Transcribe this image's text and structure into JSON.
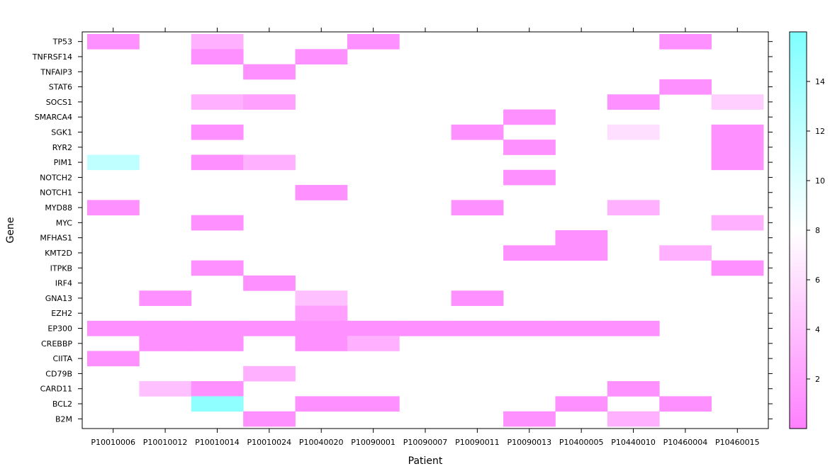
{
  "chart_data": {
    "type": "heatmap",
    "xlabel": "Patient",
    "ylabel": "Gene",
    "x_categories": [
      "P10010006",
      "P10010012",
      "P10010014",
      "P10010024",
      "P10040020",
      "P10090001",
      "P10090007",
      "P10090011",
      "P10090013",
      "P10400005",
      "P10440010",
      "P10460004",
      "P10460015"
    ],
    "y_categories": [
      "B2M",
      "BCL2",
      "CARD11",
      "CD79B",
      "CIITA",
      "CREBBP",
      "EP300",
      "EZH2",
      "GNA13",
      "IRF4",
      "ITPKB",
      "KMT2D",
      "MFHAS1",
      "MYC",
      "MYD88",
      "NOTCH1",
      "NOTCH2",
      "PIM1",
      "RYR2",
      "SGK1",
      "SMARCA4",
      "SOCS1",
      "STAT6",
      "TNFAIP3",
      "TNFRSF14",
      "TP53"
    ],
    "colorbar": {
      "range": [
        0,
        16
      ],
      "ticks": [
        2,
        4,
        6,
        8,
        10,
        12,
        14
      ],
      "low_color": "#ff80ff",
      "mid_color": "#ffffff",
      "high_color": "#80ffff"
    },
    "cells": [
      {
        "patient": "P10010006",
        "gene": "TP53",
        "value": 1
      },
      {
        "patient": "P10010014",
        "gene": "TP53",
        "value": 3
      },
      {
        "patient": "P10090001",
        "gene": "TP53",
        "value": 1
      },
      {
        "patient": "P10460004",
        "gene": "TP53",
        "value": 1
      },
      {
        "patient": "P10010014",
        "gene": "TNFRSF14",
        "value": 1
      },
      {
        "patient": "P10040020",
        "gene": "TNFRSF14",
        "value": 1
      },
      {
        "patient": "P10010024",
        "gene": "TNFAIP3",
        "value": 1
      },
      {
        "patient": "P10460004",
        "gene": "STAT6",
        "value": 1
      },
      {
        "patient": "P10010014",
        "gene": "SOCS1",
        "value": 3
      },
      {
        "patient": "P10010024",
        "gene": "SOCS1",
        "value": 2
      },
      {
        "patient": "P10440010",
        "gene": "SOCS1",
        "value": 1
      },
      {
        "patient": "P10460015",
        "gene": "SOCS1",
        "value": 5
      },
      {
        "patient": "P10090013",
        "gene": "SMARCA4",
        "value": 1
      },
      {
        "patient": "P10010014",
        "gene": "SGK1",
        "value": 1
      },
      {
        "patient": "P10090011",
        "gene": "SGK1",
        "value": 1
      },
      {
        "patient": "P10440010",
        "gene": "SGK1",
        "value": 6
      },
      {
        "patient": "P10460015",
        "gene": "SGK1",
        "value": 1
      },
      {
        "patient": "P10090013",
        "gene": "RYR2",
        "value": 1
      },
      {
        "patient": "P10460015",
        "gene": "RYR2",
        "value": 1
      },
      {
        "patient": "P10010006",
        "gene": "PIM1",
        "value": 12
      },
      {
        "patient": "P10010014",
        "gene": "PIM1",
        "value": 1
      },
      {
        "patient": "P10010024",
        "gene": "PIM1",
        "value": 3
      },
      {
        "patient": "P10460015",
        "gene": "PIM1",
        "value": 1
      },
      {
        "patient": "P10090013",
        "gene": "NOTCH2",
        "value": 1
      },
      {
        "patient": "P10040020",
        "gene": "NOTCH1",
        "value": 1
      },
      {
        "patient": "P10010006",
        "gene": "MYD88",
        "value": 1
      },
      {
        "patient": "P10090011",
        "gene": "MYD88",
        "value": 1
      },
      {
        "patient": "P10440010",
        "gene": "MYD88",
        "value": 3
      },
      {
        "patient": "P10010014",
        "gene": "MYC",
        "value": 1
      },
      {
        "patient": "P10460015",
        "gene": "MYC",
        "value": 3
      },
      {
        "patient": "P10400005",
        "gene": "MFHAS1",
        "value": 1
      },
      {
        "patient": "P10090013",
        "gene": "KMT2D",
        "value": 1
      },
      {
        "patient": "P10400005",
        "gene": "KMT2D",
        "value": 1
      },
      {
        "patient": "P10460004",
        "gene": "KMT2D",
        "value": 3
      },
      {
        "patient": "P10010014",
        "gene": "ITPKB",
        "value": 1
      },
      {
        "patient": "P10460015",
        "gene": "ITPKB",
        "value": 1
      },
      {
        "patient": "P10010024",
        "gene": "IRF4",
        "value": 1
      },
      {
        "patient": "P10010012",
        "gene": "GNA13",
        "value": 1
      },
      {
        "patient": "P10040020",
        "gene": "GNA13",
        "value": 4
      },
      {
        "patient": "P10090011",
        "gene": "GNA13",
        "value": 1
      },
      {
        "patient": "P10040020",
        "gene": "EZH2",
        "value": 2
      },
      {
        "patient": "P10010006",
        "gene": "EP300",
        "value": 1
      },
      {
        "patient": "P10010012",
        "gene": "EP300",
        "value": 1
      },
      {
        "patient": "P10010014",
        "gene": "EP300",
        "value": 1
      },
      {
        "patient": "P10010024",
        "gene": "EP300",
        "value": 1
      },
      {
        "patient": "P10040020",
        "gene": "EP300",
        "value": 1
      },
      {
        "patient": "P10090001",
        "gene": "EP300",
        "value": 1
      },
      {
        "patient": "P10090007",
        "gene": "EP300",
        "value": 1
      },
      {
        "patient": "P10090011",
        "gene": "EP300",
        "value": 1
      },
      {
        "patient": "P10090013",
        "gene": "EP300",
        "value": 1
      },
      {
        "patient": "P10400005",
        "gene": "EP300",
        "value": 1
      },
      {
        "patient": "P10440010",
        "gene": "EP300",
        "value": 1
      },
      {
        "patient": "P10010012",
        "gene": "CREBBP",
        "value": 1
      },
      {
        "patient": "P10010014",
        "gene": "CREBBP",
        "value": 1
      },
      {
        "patient": "P10040020",
        "gene": "CREBBP",
        "value": 1
      },
      {
        "patient": "P10090001",
        "gene": "CREBBP",
        "value": 3
      },
      {
        "patient": "P10010006",
        "gene": "CIITA",
        "value": 1
      },
      {
        "patient": "P10010024",
        "gene": "CD79B",
        "value": 3
      },
      {
        "patient": "P10010012",
        "gene": "CARD11",
        "value": 4
      },
      {
        "patient": "P10010014",
        "gene": "CARD11",
        "value": 1
      },
      {
        "patient": "P10440010",
        "gene": "CARD11",
        "value": 1
      },
      {
        "patient": "P10010014",
        "gene": "BCL2",
        "value": 15
      },
      {
        "patient": "P10040020",
        "gene": "BCL2",
        "value": 1
      },
      {
        "patient": "P10090001",
        "gene": "BCL2",
        "value": 1
      },
      {
        "patient": "P10400005",
        "gene": "BCL2",
        "value": 1
      },
      {
        "patient": "P10460004",
        "gene": "BCL2",
        "value": 1
      },
      {
        "patient": "P10010024",
        "gene": "B2M",
        "value": 1
      },
      {
        "patient": "P10090013",
        "gene": "B2M",
        "value": 1
      },
      {
        "patient": "P10440010",
        "gene": "B2M",
        "value": 3
      }
    ]
  }
}
